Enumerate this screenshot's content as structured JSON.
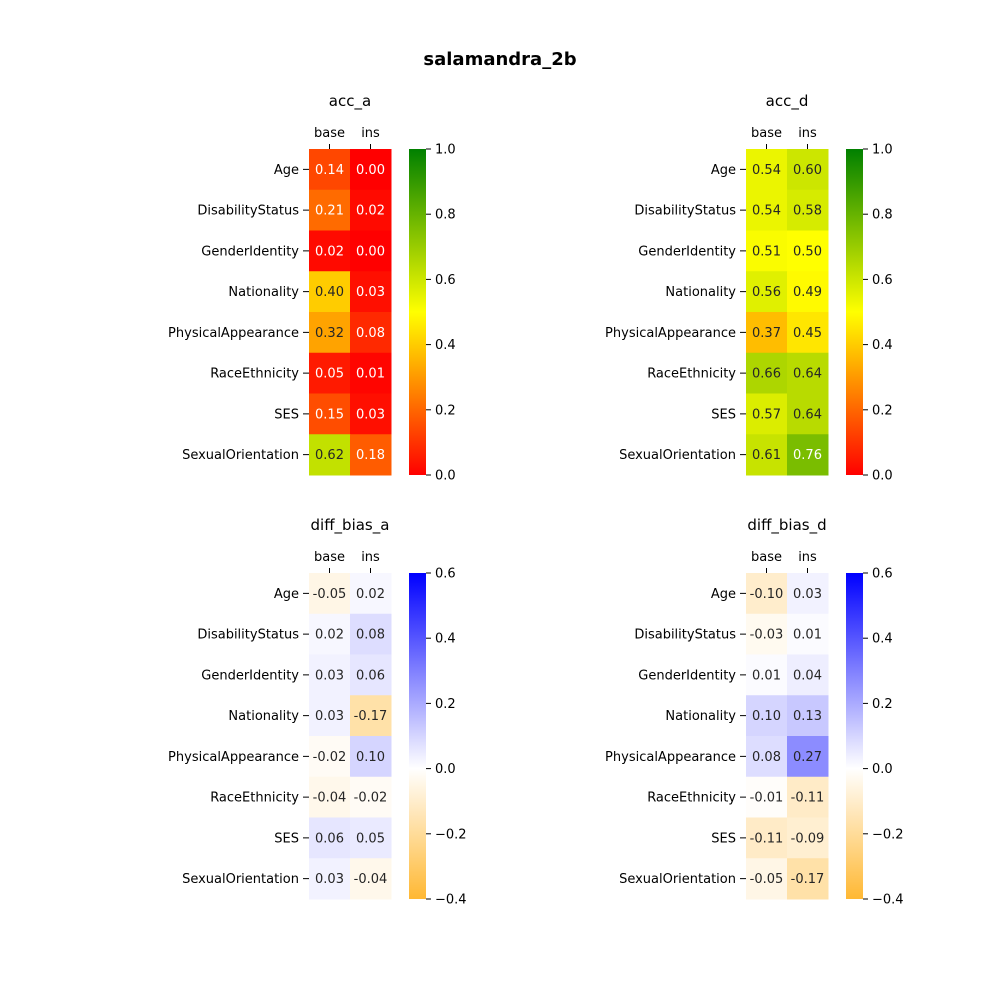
{
  "figure_title": "salamandra_2b",
  "chart_data": [
    {
      "type": "heatmap",
      "title": "acc_a",
      "columns": [
        "base",
        "ins"
      ],
      "rows": [
        "Age",
        "DisabilityStatus",
        "GenderIdentity",
        "Nationality",
        "PhysicalAppearance",
        "RaceEthnicity",
        "SES",
        "SexualOrientation"
      ],
      "values": [
        [
          0.14,
          0.0
        ],
        [
          0.21,
          0.02
        ],
        [
          0.02,
          0.0
        ],
        [
          0.4,
          0.03
        ],
        [
          0.32,
          0.08
        ],
        [
          0.05,
          0.01
        ],
        [
          0.15,
          0.03
        ],
        [
          0.62,
          0.18
        ]
      ],
      "value_labels": [
        [
          "0.14",
          "0.00"
        ],
        [
          "0.21",
          "0.02"
        ],
        [
          "0.02",
          "0.00"
        ],
        [
          "0.40",
          "0.03"
        ],
        [
          "0.32",
          "0.08"
        ],
        [
          "0.05",
          "0.01"
        ],
        [
          "0.15",
          "0.03"
        ],
        [
          "0.62",
          "0.18"
        ]
      ],
      "colormap": "red-yellow-green",
      "colormap_colors": [
        "#ff0000",
        "#ffff00",
        "#008000"
      ],
      "vmin": 0.0,
      "vmax": 1.0,
      "colorbar_ticks": [
        0.0,
        0.2,
        0.4,
        0.6,
        0.8,
        1.0
      ],
      "colorbar_tick_labels": [
        "0.0",
        "0.2",
        "0.4",
        "0.6",
        "0.8",
        "1.0"
      ]
    },
    {
      "type": "heatmap",
      "title": "acc_d",
      "columns": [
        "base",
        "ins"
      ],
      "rows": [
        "Age",
        "DisabilityStatus",
        "GenderIdentity",
        "Nationality",
        "PhysicalAppearance",
        "RaceEthnicity",
        "SES",
        "SexualOrientation"
      ],
      "values": [
        [
          0.54,
          0.6
        ],
        [
          0.54,
          0.58
        ],
        [
          0.51,
          0.5
        ],
        [
          0.56,
          0.49
        ],
        [
          0.37,
          0.45
        ],
        [
          0.66,
          0.64
        ],
        [
          0.57,
          0.64
        ],
        [
          0.61,
          0.76
        ]
      ],
      "value_labels": [
        [
          "0.54",
          "0.60"
        ],
        [
          "0.54",
          "0.58"
        ],
        [
          "0.51",
          "0.50"
        ],
        [
          "0.56",
          "0.49"
        ],
        [
          "0.37",
          "0.45"
        ],
        [
          "0.66",
          "0.64"
        ],
        [
          "0.57",
          "0.64"
        ],
        [
          "0.61",
          "0.76"
        ]
      ],
      "colormap": "red-yellow-green",
      "colormap_colors": [
        "#ff0000",
        "#ffff00",
        "#008000"
      ],
      "vmin": 0.0,
      "vmax": 1.0,
      "colorbar_ticks": [
        0.0,
        0.2,
        0.4,
        0.6,
        0.8,
        1.0
      ],
      "colorbar_tick_labels": [
        "0.0",
        "0.2",
        "0.4",
        "0.6",
        "0.8",
        "1.0"
      ]
    },
    {
      "type": "heatmap",
      "title": "diff_bias_a",
      "columns": [
        "base",
        "ins"
      ],
      "rows": [
        "Age",
        "DisabilityStatus",
        "GenderIdentity",
        "Nationality",
        "PhysicalAppearance",
        "RaceEthnicity",
        "SES",
        "SexualOrientation"
      ],
      "values": [
        [
          -0.05,
          0.02
        ],
        [
          0.02,
          0.08
        ],
        [
          0.03,
          0.06
        ],
        [
          0.03,
          -0.17
        ],
        [
          -0.02,
          0.1
        ],
        [
          -0.04,
          -0.02
        ],
        [
          0.06,
          0.05
        ],
        [
          0.03,
          -0.04
        ]
      ],
      "value_labels": [
        [
          "-0.05",
          "0.02"
        ],
        [
          "0.02",
          "0.08"
        ],
        [
          "0.03",
          "0.06"
        ],
        [
          "0.03",
          "-0.17"
        ],
        [
          "-0.02",
          "0.10"
        ],
        [
          "-0.04",
          "-0.02"
        ],
        [
          "0.06",
          "0.05"
        ],
        [
          "0.03",
          "-0.04"
        ]
      ],
      "colormap": "orange-white-blue",
      "colormap_colors": [
        "#ffb833",
        "#ffffff",
        "#0000ff"
      ],
      "vmin": -0.4,
      "vmax": 0.6,
      "colorbar_ticks": [
        -0.4,
        -0.2,
        0.0,
        0.2,
        0.4,
        0.6
      ],
      "colorbar_tick_labels": [
        "−0.4",
        "−0.2",
        "0.0",
        "0.2",
        "0.4",
        "0.6"
      ]
    },
    {
      "type": "heatmap",
      "title": "diff_bias_d",
      "columns": [
        "base",
        "ins"
      ],
      "rows": [
        "Age",
        "DisabilityStatus",
        "GenderIdentity",
        "Nationality",
        "PhysicalAppearance",
        "RaceEthnicity",
        "SES",
        "SexualOrientation"
      ],
      "values": [
        [
          -0.1,
          0.03
        ],
        [
          -0.03,
          0.01
        ],
        [
          0.01,
          0.04
        ],
        [
          0.1,
          0.13
        ],
        [
          0.08,
          0.27
        ],
        [
          -0.01,
          -0.11
        ],
        [
          -0.11,
          -0.09
        ],
        [
          -0.05,
          -0.17
        ]
      ],
      "value_labels": [
        [
          "-0.10",
          "0.03"
        ],
        [
          "-0.03",
          "0.01"
        ],
        [
          "0.01",
          "0.04"
        ],
        [
          "0.10",
          "0.13"
        ],
        [
          "0.08",
          "0.27"
        ],
        [
          "-0.01",
          "-0.11"
        ],
        [
          "-0.11",
          "-0.09"
        ],
        [
          "-0.05",
          "-0.17"
        ]
      ],
      "colormap": "orange-white-blue",
      "colormap_colors": [
        "#ffb833",
        "#ffffff",
        "#0000ff"
      ],
      "vmin": -0.4,
      "vmax": 0.6,
      "colorbar_ticks": [
        -0.4,
        -0.2,
        0.0,
        0.2,
        0.4,
        0.6
      ],
      "colorbar_tick_labels": [
        "−0.4",
        "−0.2",
        "0.0",
        "0.2",
        "0.4",
        "0.6"
      ]
    }
  ]
}
